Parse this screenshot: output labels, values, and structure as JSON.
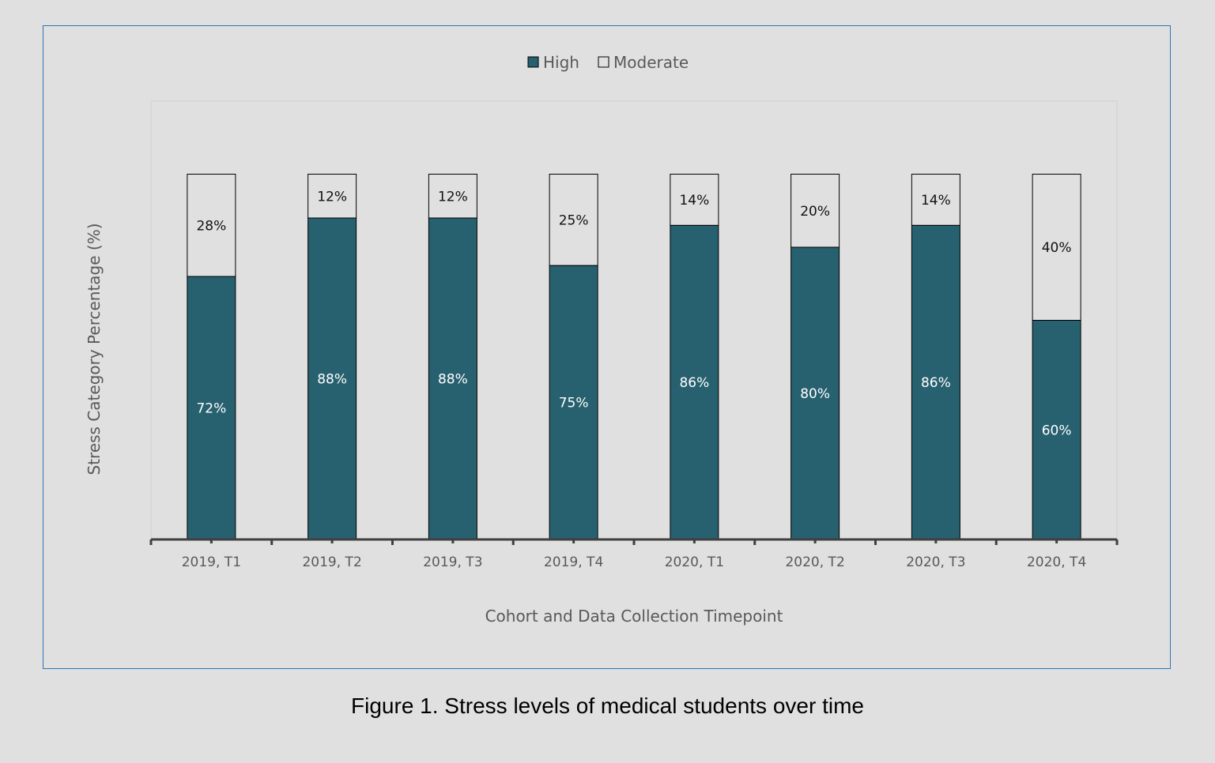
{
  "chart_data": {
    "type": "bar",
    "stacked": true,
    "categories": [
      "2019, T1",
      "2019, T2",
      "2019, T3",
      "2019, T4",
      "2020, T1",
      "2020, T2",
      "2020, T3",
      "2020, T4"
    ],
    "series": [
      {
        "name": "High",
        "values": [
          72,
          88,
          88,
          75,
          86,
          80,
          86,
          60
        ],
        "labels": [
          "72%",
          "88%",
          "88%",
          "75%",
          "86%",
          "80%",
          "86%",
          "60%"
        ],
        "color": "#27606f"
      },
      {
        "name": "Moderate",
        "values": [
          28,
          12,
          12,
          25,
          14,
          20,
          14,
          40
        ],
        "labels": [
          "28%",
          "12%",
          "12%",
          "25%",
          "14%",
          "20%",
          "14%",
          "40%"
        ],
        "color": "#e0e0e0"
      }
    ],
    "xlabel": "Cohort and Data Collection Timepoint",
    "ylabel": "Stress Category Percentage (%)",
    "ylim": [
      0,
      120
    ],
    "legend_position": "top-center",
    "grid": false
  },
  "caption": "Figure 1. Stress levels of medical students over time"
}
